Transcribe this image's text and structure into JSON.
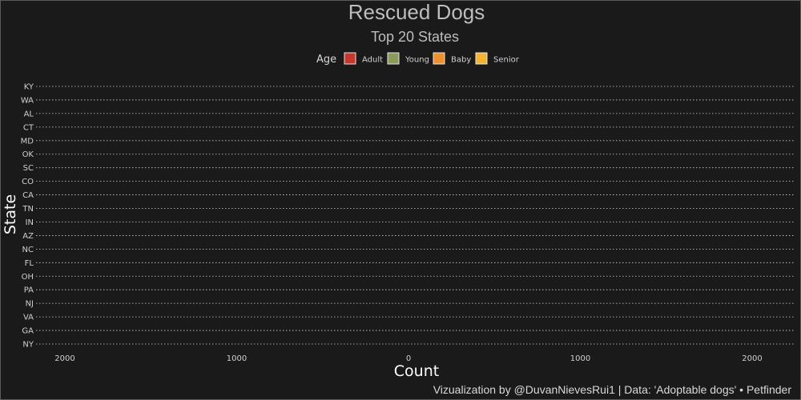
{
  "chart_data": {
    "type": "bar",
    "orientation": "horizontal-diverging",
    "title": "Rescued Dogs",
    "subtitle": "Top 20 States",
    "xlabel": "Count",
    "ylabel": "State",
    "caption": "Vizualization by @DuvanNievesRui1 | Data: 'Adoptable dogs' • Petfinder",
    "categories": [
      "KY",
      "WA",
      "AL",
      "CT",
      "MD",
      "OK",
      "SC",
      "CO",
      "CA",
      "TN",
      "IN",
      "AZ",
      "NC",
      "FL",
      "OH",
      "PA",
      "NJ",
      "VA",
      "GA",
      "NY"
    ],
    "xlim": [
      -2200,
      2200
    ],
    "x_ticks": [
      -2000,
      -1000,
      0,
      1000,
      2000
    ],
    "x_tick_labels": [
      "2000",
      "1000",
      "0",
      "1000",
      "2000"
    ],
    "legend": {
      "title": "Age",
      "placement": "top",
      "entries": [
        {
          "name": "Adult",
          "color": "#c8372d"
        },
        {
          "name": "Young",
          "color": "#8c9b5a"
        },
        {
          "name": "Baby",
          "color": "#f0902a"
        },
        {
          "name": "Senior",
          "color": "#f5b330"
        }
      ]
    },
    "series": [],
    "grid": "horizontal-dotted"
  }
}
